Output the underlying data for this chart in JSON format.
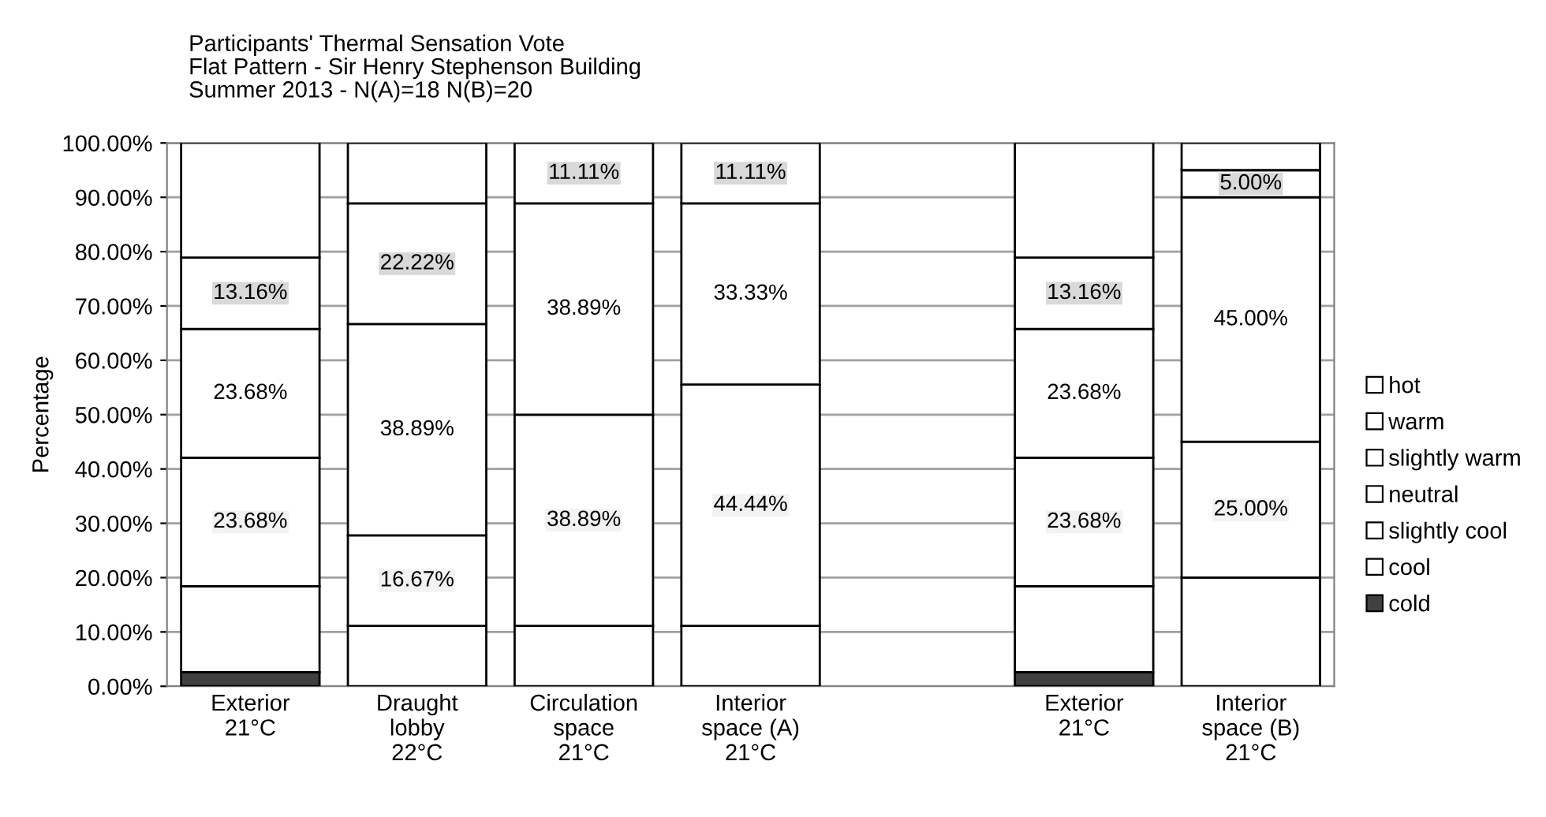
{
  "chart_data": {
    "type": "bar",
    "stacked": true,
    "title": "Participants' Thermal Sensation Vote\nFlat Pattern - Sir Henry Stephenson Building\nSummer 2013 - N(A)=18 N(B)=20",
    "ylabel": "Percentage",
    "categories": [
      "Exterior\n21°C",
      "Draught\nlobby\n22°C",
      "Circulation\nspace\n21°C",
      "Interior\nspace (A)\n21°C",
      null,
      "Exterior\n21°C",
      "Interior\nspace (B)\n21°C"
    ],
    "series": [
      {
        "name": "cold",
        "color": "#404040",
        "values": [
          2.6,
          null,
          null,
          null,
          null,
          2.6,
          null
        ],
        "value_labels": [
          null,
          null,
          null,
          null,
          null,
          null,
          null
        ]
      },
      {
        "name": "cool",
        "color": "#ffffff",
        "values": [
          15.8,
          11.11,
          11.11,
          11.11,
          null,
          15.8,
          20
        ],
        "value_labels": [
          null,
          null,
          null,
          null,
          null,
          null,
          null
        ]
      },
      {
        "name": "slightly cool",
        "color": "#ffffff",
        "values": [
          23.68,
          16.67,
          38.89,
          44.44,
          null,
          23.68,
          25
        ],
        "value_labels": [
          "23.68%",
          "16.67%",
          "38.89%",
          "44.44%",
          null,
          "23.68%",
          "25.00%"
        ]
      },
      {
        "name": "neutral",
        "color": "#ffffff",
        "values": [
          23.68,
          38.89,
          38.89,
          33.33,
          null,
          23.68,
          45
        ],
        "value_labels": [
          "23.68%",
          "38.89%",
          "38.89%",
          "33.33%",
          null,
          "23.68%",
          "45.00%"
        ]
      },
      {
        "name": "slightly warm",
        "color": "#ffffff",
        "values": [
          13.16,
          22.22,
          11.11,
          11.11,
          null,
          13.16,
          5
        ],
        "value_labels": [
          "13.16%",
          "22.22%",
          "11.11%",
          "11.11%",
          null,
          "13.16%",
          "5.00%"
        ]
      },
      {
        "name": "warm",
        "color": "#ffffff",
        "values": [
          21.1,
          11.1,
          null,
          null,
          null,
          21.1,
          5
        ],
        "value_labels": [
          null,
          null,
          null,
          null,
          null,
          null,
          null
        ]
      },
      {
        "name": "hot",
        "color": "#ffffff",
        "values": [
          null,
          null,
          null,
          null,
          null,
          null,
          null
        ],
        "value_labels": [
          null,
          null,
          null,
          null,
          null,
          null,
          null
        ]
      }
    ],
    "ylim": [
      0,
      100
    ],
    "yticks": [
      {
        "value": 0,
        "label": "0.00%"
      },
      {
        "value": 10,
        "label": "10.00%"
      },
      {
        "value": 20,
        "label": "20.00%"
      },
      {
        "value": 30,
        "label": "30.00%"
      },
      {
        "value": 40,
        "label": "40.00%"
      },
      {
        "value": 50,
        "label": "50.00%"
      },
      {
        "value": 60,
        "label": "60.00%"
      },
      {
        "value": 70,
        "label": "70.00%"
      },
      {
        "value": 80,
        "label": "80.00%"
      },
      {
        "value": 90,
        "label": "90.00%"
      },
      {
        "value": 100,
        "label": "100.00%"
      }
    ],
    "grid": "y",
    "legend": "right"
  }
}
